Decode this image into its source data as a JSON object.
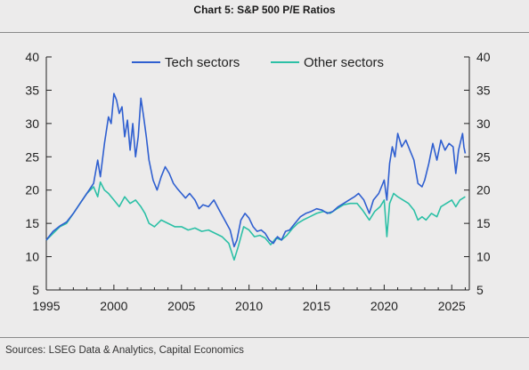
{
  "title": "Chart 5: S&P 500 P/E Ratios",
  "source": "Sources: LSEG Data & Analytics, Capital Economics",
  "colors": {
    "tech": "#2f5fd0",
    "other": "#2cc0a6",
    "background": "#ecebeb",
    "axis": "#222222"
  },
  "chart_data": {
    "type": "line",
    "title": "Chart 5: S&P 500 P/E Ratios",
    "xlabel": "",
    "ylabel": "",
    "xlim": [
      1995,
      2026.3
    ],
    "ylim": [
      5,
      40
    ],
    "xticks": [
      "1995",
      "2000",
      "2005",
      "2010",
      "2015",
      "2020",
      "2025"
    ],
    "yticks_left": [
      "40",
      "35",
      "30",
      "25",
      "20",
      "15",
      "10",
      "5"
    ],
    "yticks_right": [
      "40",
      "35",
      "30",
      "25",
      "20",
      "15",
      "10",
      "5"
    ],
    "grid": false,
    "legend_position": "top-center",
    "series": [
      {
        "name": "Tech sectors",
        "color": "#2f5fd0",
        "points": [
          [
            1995.0,
            12.5
          ],
          [
            1995.5,
            13.8
          ],
          [
            1996.0,
            14.6
          ],
          [
            1996.5,
            15.2
          ],
          [
            1997.0,
            16.5
          ],
          [
            1997.5,
            18.0
          ],
          [
            1998.0,
            19.5
          ],
          [
            1998.5,
            21.0
          ],
          [
            1998.8,
            24.5
          ],
          [
            1999.0,
            22.0
          ],
          [
            1999.3,
            27.0
          ],
          [
            1999.6,
            31.0
          ],
          [
            1999.8,
            30.0
          ],
          [
            2000.0,
            34.5
          ],
          [
            2000.2,
            33.5
          ],
          [
            2000.4,
            31.5
          ],
          [
            2000.6,
            32.5
          ],
          [
            2000.8,
            28.0
          ],
          [
            2001.0,
            30.5
          ],
          [
            2001.2,
            26.0
          ],
          [
            2001.4,
            30.0
          ],
          [
            2001.6,
            25.0
          ],
          [
            2001.8,
            28.0
          ],
          [
            2002.0,
            33.8
          ],
          [
            2002.2,
            31.0
          ],
          [
            2002.4,
            28.0
          ],
          [
            2002.6,
            24.5
          ],
          [
            2002.9,
            21.5
          ],
          [
            2003.2,
            20.0
          ],
          [
            2003.5,
            22.0
          ],
          [
            2003.8,
            23.5
          ],
          [
            2004.1,
            22.5
          ],
          [
            2004.4,
            21.0
          ],
          [
            2004.7,
            20.2
          ],
          [
            2005.0,
            19.5
          ],
          [
            2005.3,
            18.8
          ],
          [
            2005.6,
            19.5
          ],
          [
            2006.0,
            18.5
          ],
          [
            2006.3,
            17.2
          ],
          [
            2006.6,
            17.8
          ],
          [
            2007.0,
            17.5
          ],
          [
            2007.4,
            18.5
          ],
          [
            2007.8,
            17.0
          ],
          [
            2008.2,
            15.5
          ],
          [
            2008.6,
            14.0
          ],
          [
            2008.9,
            11.5
          ],
          [
            2009.1,
            12.5
          ],
          [
            2009.4,
            15.5
          ],
          [
            2009.7,
            16.5
          ],
          [
            2010.0,
            15.8
          ],
          [
            2010.3,
            14.5
          ],
          [
            2010.6,
            13.8
          ],
          [
            2010.9,
            14.0
          ],
          [
            2011.2,
            13.5
          ],
          [
            2011.5,
            12.5
          ],
          [
            2011.8,
            12.0
          ],
          [
            2012.1,
            13.0
          ],
          [
            2012.4,
            12.5
          ],
          [
            2012.7,
            13.8
          ],
          [
            2013.0,
            14.0
          ],
          [
            2013.4,
            15.0
          ],
          [
            2013.8,
            16.0
          ],
          [
            2014.2,
            16.5
          ],
          [
            2014.6,
            16.8
          ],
          [
            2015.0,
            17.2
          ],
          [
            2015.4,
            17.0
          ],
          [
            2015.8,
            16.5
          ],
          [
            2016.2,
            16.8
          ],
          [
            2016.6,
            17.5
          ],
          [
            2017.0,
            18.0
          ],
          [
            2017.4,
            18.5
          ],
          [
            2017.8,
            19.0
          ],
          [
            2018.1,
            19.5
          ],
          [
            2018.5,
            18.5
          ],
          [
            2018.9,
            16.5
          ],
          [
            2019.2,
            18.5
          ],
          [
            2019.6,
            19.5
          ],
          [
            2020.0,
            21.5
          ],
          [
            2020.2,
            18.5
          ],
          [
            2020.4,
            24.0
          ],
          [
            2020.6,
            26.5
          ],
          [
            2020.8,
            25.0
          ],
          [
            2021.0,
            28.5
          ],
          [
            2021.3,
            26.5
          ],
          [
            2021.6,
            27.5
          ],
          [
            2021.9,
            26.0
          ],
          [
            2022.2,
            24.5
          ],
          [
            2022.5,
            21.0
          ],
          [
            2022.8,
            20.5
          ],
          [
            2023.0,
            21.5
          ],
          [
            2023.3,
            24.0
          ],
          [
            2023.6,
            27.0
          ],
          [
            2023.9,
            24.5
          ],
          [
            2024.2,
            27.5
          ],
          [
            2024.5,
            26.0
          ],
          [
            2024.8,
            27.0
          ],
          [
            2025.1,
            26.5
          ],
          [
            2025.3,
            22.5
          ],
          [
            2025.5,
            26.0
          ],
          [
            2025.8,
            28.5
          ],
          [
            2025.9,
            26.5
          ],
          [
            2026.0,
            25.5
          ]
        ]
      },
      {
        "name": "Other sectors",
        "color": "#2cc0a6",
        "points": [
          [
            1995.0,
            12.5
          ],
          [
            1995.5,
            13.5
          ],
          [
            1996.0,
            14.5
          ],
          [
            1996.5,
            15.0
          ],
          [
            1997.0,
            16.5
          ],
          [
            1997.5,
            18.0
          ],
          [
            1998.0,
            19.5
          ],
          [
            1998.5,
            20.5
          ],
          [
            1998.8,
            19.0
          ],
          [
            1999.0,
            21.2
          ],
          [
            1999.3,
            20.0
          ],
          [
            1999.6,
            19.5
          ],
          [
            2000.0,
            18.5
          ],
          [
            2000.4,
            17.5
          ],
          [
            2000.8,
            19.0
          ],
          [
            2001.2,
            18.0
          ],
          [
            2001.6,
            18.5
          ],
          [
            2002.0,
            17.5
          ],
          [
            2002.3,
            16.5
          ],
          [
            2002.6,
            15.0
          ],
          [
            2003.0,
            14.5
          ],
          [
            2003.5,
            15.5
          ],
          [
            2004.0,
            15.0
          ],
          [
            2004.5,
            14.5
          ],
          [
            2005.0,
            14.5
          ],
          [
            2005.5,
            14.0
          ],
          [
            2006.0,
            14.3
          ],
          [
            2006.5,
            13.8
          ],
          [
            2007.0,
            14.0
          ],
          [
            2007.5,
            13.5
          ],
          [
            2008.0,
            13.0
          ],
          [
            2008.5,
            12.0
          ],
          [
            2008.9,
            9.5
          ],
          [
            2009.2,
            11.5
          ],
          [
            2009.6,
            14.5
          ],
          [
            2010.0,
            14.0
          ],
          [
            2010.4,
            13.0
          ],
          [
            2010.8,
            13.2
          ],
          [
            2011.2,
            12.8
          ],
          [
            2011.6,
            11.8
          ],
          [
            2012.0,
            12.8
          ],
          [
            2012.4,
            12.5
          ],
          [
            2012.8,
            13.2
          ],
          [
            2013.2,
            14.2
          ],
          [
            2013.6,
            15.0
          ],
          [
            2014.0,
            15.5
          ],
          [
            2014.5,
            16.0
          ],
          [
            2015.0,
            16.5
          ],
          [
            2015.5,
            16.8
          ],
          [
            2016.0,
            16.5
          ],
          [
            2016.5,
            17.2
          ],
          [
            2017.0,
            17.8
          ],
          [
            2017.5,
            18.0
          ],
          [
            2018.0,
            18.0
          ],
          [
            2018.4,
            17.0
          ],
          [
            2018.9,
            15.5
          ],
          [
            2019.3,
            16.8
          ],
          [
            2019.7,
            17.5
          ],
          [
            2020.0,
            18.5
          ],
          [
            2020.2,
            13.0
          ],
          [
            2020.4,
            18.0
          ],
          [
            2020.7,
            19.5
          ],
          [
            2021.0,
            19.0
          ],
          [
            2021.4,
            18.5
          ],
          [
            2021.8,
            18.0
          ],
          [
            2022.2,
            17.0
          ],
          [
            2022.5,
            15.5
          ],
          [
            2022.8,
            16.0
          ],
          [
            2023.1,
            15.5
          ],
          [
            2023.5,
            16.5
          ],
          [
            2023.9,
            16.0
          ],
          [
            2024.2,
            17.5
          ],
          [
            2024.6,
            18.0
          ],
          [
            2025.0,
            18.5
          ],
          [
            2025.3,
            17.5
          ],
          [
            2025.6,
            18.5
          ],
          [
            2026.0,
            19.0
          ]
        ]
      }
    ]
  }
}
